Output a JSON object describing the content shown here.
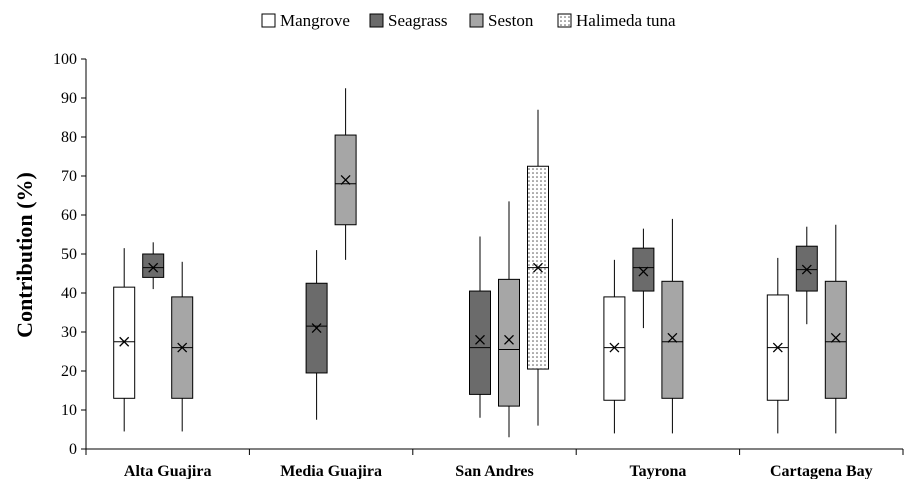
{
  "chart_data": {
    "type": "boxplot",
    "title": "",
    "xlabel": "",
    "ylabel": "Contribution (%)",
    "ylim": [
      0,
      100
    ],
    "yticks": [
      0,
      10,
      20,
      30,
      40,
      50,
      60,
      70,
      80,
      90,
      100
    ],
    "grid": false,
    "legend_position": "top-center",
    "categories": [
      "Alta Guajira",
      "Media Guajira",
      "San Andres",
      "Tayrona",
      "Cartagena Bay"
    ],
    "series": [
      {
        "name": "Mangrove",
        "fill": "#ffffff",
        "pattern": "none",
        "boxes": [
          {
            "category": "Alta Guajira",
            "min": 4.5,
            "q1": 13,
            "median": 27.5,
            "mean": 27.5,
            "q3": 41.5,
            "max": 51.5
          },
          {
            "category": "Tayrona",
            "min": 4,
            "q1": 12.5,
            "median": 26,
            "mean": 26,
            "q3": 39,
            "max": 48.5
          },
          {
            "category": "Cartagena Bay",
            "min": 4,
            "q1": 12.5,
            "median": 26,
            "mean": 26,
            "q3": 39.5,
            "max": 49
          }
        ]
      },
      {
        "name": "Seagrass",
        "fill": "#6b6b6b",
        "pattern": "none",
        "boxes": [
          {
            "category": "Alta Guajira",
            "min": 41,
            "q1": 44,
            "median": 46.5,
            "mean": 46.5,
            "q3": 50,
            "max": 53
          },
          {
            "category": "Media Guajira",
            "min": 7.5,
            "q1": 19.5,
            "median": 31.5,
            "mean": 31,
            "q3": 42.5,
            "max": 51
          },
          {
            "category": "San Andres",
            "min": 8,
            "q1": 14,
            "median": 26,
            "mean": 28,
            "q3": 40.5,
            "max": 54.5
          },
          {
            "category": "Tayrona",
            "min": 31,
            "q1": 40.5,
            "median": 46.5,
            "mean": 45.5,
            "q3": 51.5,
            "max": 56.5
          },
          {
            "category": "Cartagena Bay",
            "min": 32,
            "q1": 40.5,
            "median": 46,
            "mean": 46,
            "q3": 52,
            "max": 57
          }
        ]
      },
      {
        "name": "Seston",
        "fill": "#a6a6a6",
        "pattern": "none",
        "boxes": [
          {
            "category": "Alta Guajira",
            "min": 4.5,
            "q1": 13,
            "median": 26,
            "mean": 26,
            "q3": 39,
            "max": 48
          },
          {
            "category": "Media Guajira",
            "min": 48.5,
            "q1": 57.5,
            "median": 68,
            "mean": 69,
            "q3": 80.5,
            "max": 92.5
          },
          {
            "category": "San Andres",
            "min": 3,
            "q1": 11,
            "median": 25.5,
            "mean": 28,
            "q3": 43.5,
            "max": 63.5
          },
          {
            "category": "Tayrona",
            "min": 4,
            "q1": 13,
            "median": 27.5,
            "mean": 28.5,
            "q3": 43,
            "max": 59
          },
          {
            "category": "Cartagena Bay",
            "min": 4,
            "q1": 13,
            "median": 27.5,
            "mean": 28.5,
            "q3": 43,
            "max": 57.5
          }
        ]
      },
      {
        "name": "Halimeda tuna",
        "fill": "#ffffff",
        "pattern": "dots",
        "boxes": [
          {
            "category": "San Andres",
            "min": 6,
            "q1": 20.5,
            "median": 46.5,
            "mean": 46.5,
            "q3": 72.5,
            "max": 87
          }
        ]
      }
    ]
  }
}
